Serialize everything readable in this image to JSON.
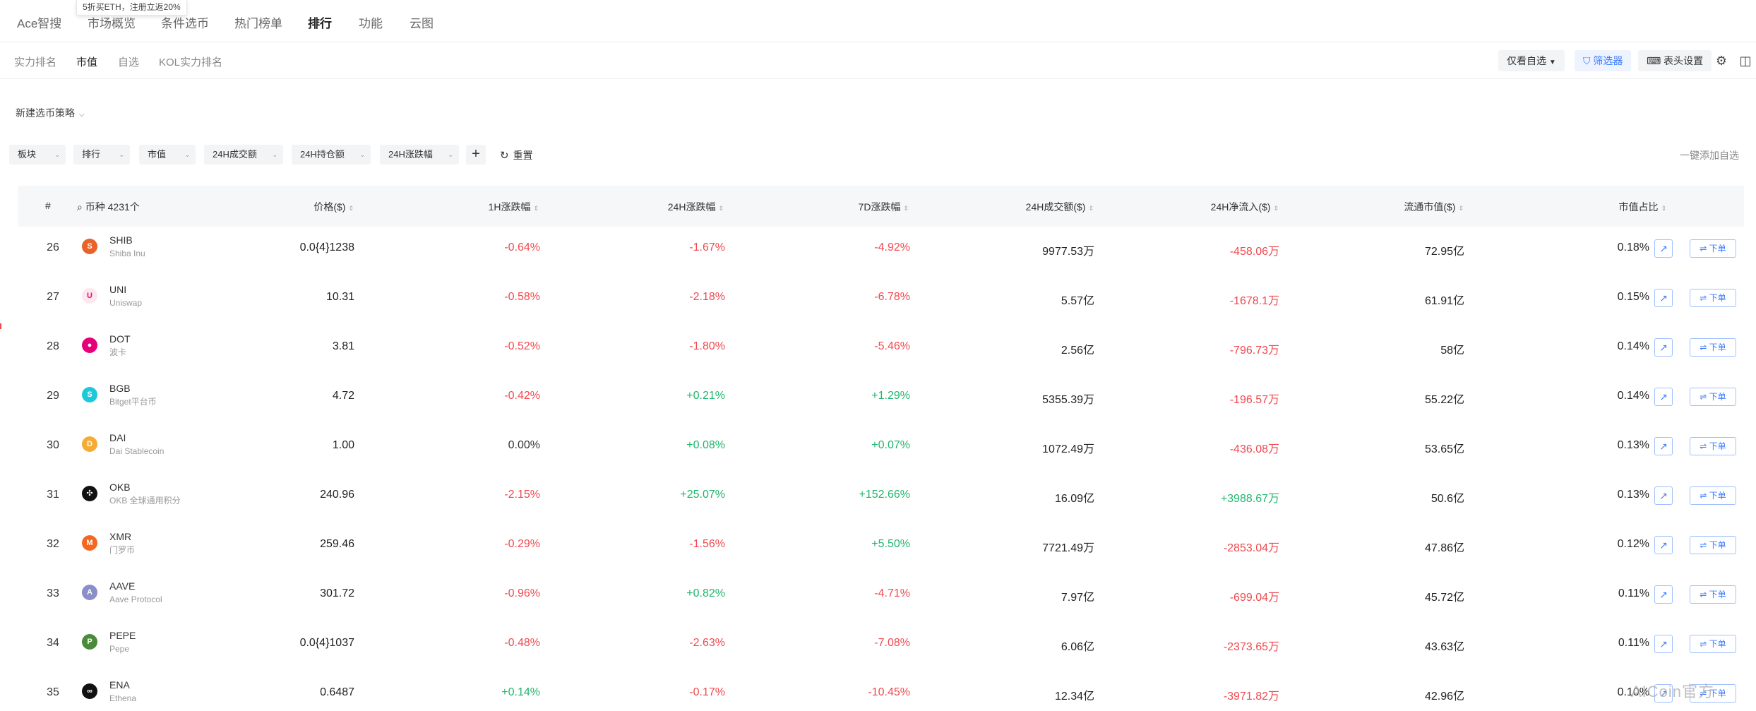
{
  "topnav": {
    "items": [
      {
        "label": "Ace智搜"
      },
      {
        "label": "市场概览"
      },
      {
        "label": "条件选币"
      },
      {
        "label": "热门榜单"
      },
      {
        "label": "排行"
      },
      {
        "label": "功能"
      },
      {
        "label": "云图"
      }
    ],
    "promo": "5折买ETH，注册立返20%"
  },
  "subnav": {
    "items": [
      {
        "label": "实力排名"
      },
      {
        "label": "市值"
      },
      {
        "label": "自选"
      },
      {
        "label": "KOL实力排名"
      }
    ],
    "only_watchlist": "仅看自选",
    "filter_btn": "筛选器",
    "header_settings": "表头设置"
  },
  "strategy_label": "新建选币策略",
  "filters": [
    {
      "label": "板块"
    },
    {
      "label": "排行"
    },
    {
      "label": "市值"
    },
    {
      "label": "24H成交额"
    },
    {
      "label": "24H持仓额"
    },
    {
      "label": "24H涨跌幅"
    }
  ],
  "reset_label": "重置",
  "add_all_label": "一键添加自选",
  "table": {
    "headers": {
      "rank": "#",
      "coin": "币种 4231个",
      "price": "价格($)",
      "h1": "1H涨跌幅",
      "h24": "24H涨跌幅",
      "d7": "7D涨跌幅",
      "vol": "24H成交额($)",
      "inflow": "24H净流入($)",
      "mcap": "流通市值($)",
      "share": "市值占比"
    },
    "order_label": "⇌ 下单",
    "rows": [
      {
        "rank": "26",
        "symbol": "SHIB",
        "name": "Shiba Inu",
        "price": "0.0{4}1238",
        "h1": "-0.64%",
        "h24": "-1.67%",
        "d7": "-4.92%",
        "vol": "9977.53万",
        "inflow": "-458.06万",
        "mcap": "72.95亿",
        "share": "0.18%",
        "logo_color": "#e8622a",
        "logo_glyph": "S"
      },
      {
        "rank": "27",
        "symbol": "UNI",
        "name": "Uniswap",
        "price": "10.31",
        "h1": "-0.58%",
        "h24": "-2.18%",
        "d7": "-6.78%",
        "vol": "5.57亿",
        "inflow": "-1678.1万",
        "mcap": "61.91亿",
        "share": "0.15%",
        "logo_color": "#fde8f0",
        "logo_glyph": "U"
      },
      {
        "rank": "28",
        "symbol": "DOT",
        "name": "波卡",
        "price": "3.81",
        "h1": "-0.52%",
        "h24": "-1.80%",
        "d7": "-5.46%",
        "vol": "2.56亿",
        "inflow": "-796.73万",
        "mcap": "58亿",
        "share": "0.14%",
        "logo_color": "#e6007a",
        "logo_glyph": "●"
      },
      {
        "rank": "29",
        "symbol": "BGB",
        "name": "Bitget平台币",
        "price": "4.72",
        "h1": "-0.42%",
        "h24": "+0.21%",
        "d7": "+1.29%",
        "vol": "5355.39万",
        "inflow": "-196.57万",
        "mcap": "55.22亿",
        "share": "0.14%",
        "logo_color": "#1ec8d8",
        "logo_glyph": "S"
      },
      {
        "rank": "30",
        "symbol": "DAI",
        "name": "Dai Stablecoin",
        "price": "1.00",
        "h1": "0.00%",
        "h24": "+0.08%",
        "d7": "+0.07%",
        "vol": "1072.49万",
        "inflow": "-436.08万",
        "mcap": "53.65亿",
        "share": "0.13%",
        "logo_color": "#f5ac37",
        "logo_glyph": "D"
      },
      {
        "rank": "31",
        "symbol": "OKB",
        "name": "OKB 全球通用积分",
        "price": "240.96",
        "h1": "-2.15%",
        "h24": "+25.07%",
        "d7": "+152.66%",
        "vol": "16.09亿",
        "inflow": "+3988.67万",
        "mcap": "50.6亿",
        "share": "0.13%",
        "logo_color": "#111111",
        "logo_glyph": "✣"
      },
      {
        "rank": "32",
        "symbol": "XMR",
        "name": "门罗币",
        "price": "259.46",
        "h1": "-0.29%",
        "h24": "-1.56%",
        "d7": "+5.50%",
        "vol": "7721.49万",
        "inflow": "-2853.04万",
        "mcap": "47.86亿",
        "share": "0.12%",
        "logo_color": "#f26822",
        "logo_glyph": "M"
      },
      {
        "rank": "33",
        "symbol": "AAVE",
        "name": "Aave Protocol",
        "price": "301.72",
        "h1": "-0.96%",
        "h24": "+0.82%",
        "d7": "-4.71%",
        "vol": "7.97亿",
        "inflow": "-699.04万",
        "mcap": "45.72亿",
        "share": "0.11%",
        "logo_color": "#8a8fc9",
        "logo_glyph": "A"
      },
      {
        "rank": "34",
        "symbol": "PEPE",
        "name": "Pepe",
        "price": "0.0{4}1037",
        "h1": "-0.48%",
        "h24": "-2.63%",
        "d7": "-7.08%",
        "vol": "6.06亿",
        "inflow": "-2373.65万",
        "mcap": "43.63亿",
        "share": "0.11%",
        "logo_color": "#4a8a3a",
        "logo_glyph": "P"
      },
      {
        "rank": "35",
        "symbol": "ENA",
        "name": "Ethena",
        "price": "0.6487",
        "h1": "+0.14%",
        "h24": "-0.17%",
        "d7": "-10.45%",
        "vol": "12.34亿",
        "inflow": "-3971.82万",
        "mcap": "42.96亿",
        "share": "0.10%",
        "logo_color": "#111111",
        "logo_glyph": "∞"
      }
    ]
  },
  "watermark": "AICoin官方"
}
